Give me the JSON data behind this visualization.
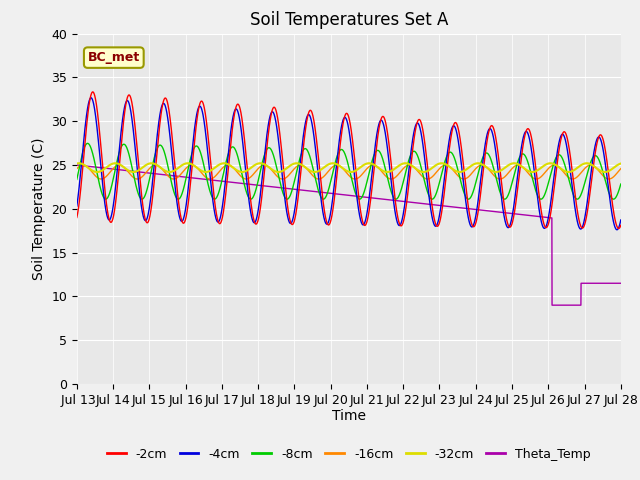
{
  "title": "Soil Temperatures Set A",
  "xlabel": "Time",
  "ylabel": "Soil Temperature (C)",
  "ylim": [
    0,
    40
  ],
  "annotation": "BC_met",
  "fig_bg": "#f0f0f0",
  "ax_bg": "#e8e8e8",
  "grid_color": "#ffffff",
  "lines": {
    "neg2cm": {
      "color": "#ff0000",
      "amp": 7.5,
      "mean": 26.0,
      "phase": -1.2,
      "amp_drift": -0.15,
      "mean_drift": -0.2
    },
    "neg4cm": {
      "color": "#0000dd",
      "amp": 7.0,
      "mean": 25.8,
      "phase": -0.9,
      "amp_drift": -0.12,
      "mean_drift": -0.2
    },
    "neg8cm": {
      "color": "#00cc00",
      "amp": 3.2,
      "mean": 24.3,
      "phase": -0.3,
      "amp_drift": -0.05,
      "mean_drift": -0.05
    },
    "neg16cm": {
      "color": "#ff8800",
      "amp": 0.8,
      "mean": 24.2,
      "phase": 0.5,
      "amp_drift": 0.0,
      "mean_drift": 0.0
    },
    "neg32cm": {
      "color": "#dddd00",
      "amp": 0.2,
      "mean": 24.7,
      "phase": 1.2,
      "amp_drift": 0.0,
      "mean_drift": 0.0
    },
    "theta": {
      "color": "#aa00aa",
      "start": 25.0,
      "end": 19.0,
      "drop_day": 13.1,
      "drop_val": 9.0,
      "recover_val": 11.5
    }
  },
  "yticks": [
    0,
    5,
    10,
    15,
    20,
    25,
    30,
    35,
    40
  ],
  "xtick_labels": [
    " Jul 13",
    "Jul 14",
    "Jul 15",
    "Jul 16",
    "Jul 17",
    "Jul 18",
    "Jul 19",
    "Jul 20",
    "Jul 21",
    "Jul 22",
    "Jul 23",
    "Jul 24",
    "Jul 25",
    "Jul 26",
    "Jul 27",
    "Jul 28"
  ],
  "legend_colors": [
    "#ff0000",
    "#0000dd",
    "#00cc00",
    "#ff8800",
    "#dddd00",
    "#aa00aa"
  ],
  "legend_labels": [
    "-2cm",
    "-4cm",
    "-8cm",
    "-16cm",
    "-32cm",
    "Theta_Temp"
  ]
}
